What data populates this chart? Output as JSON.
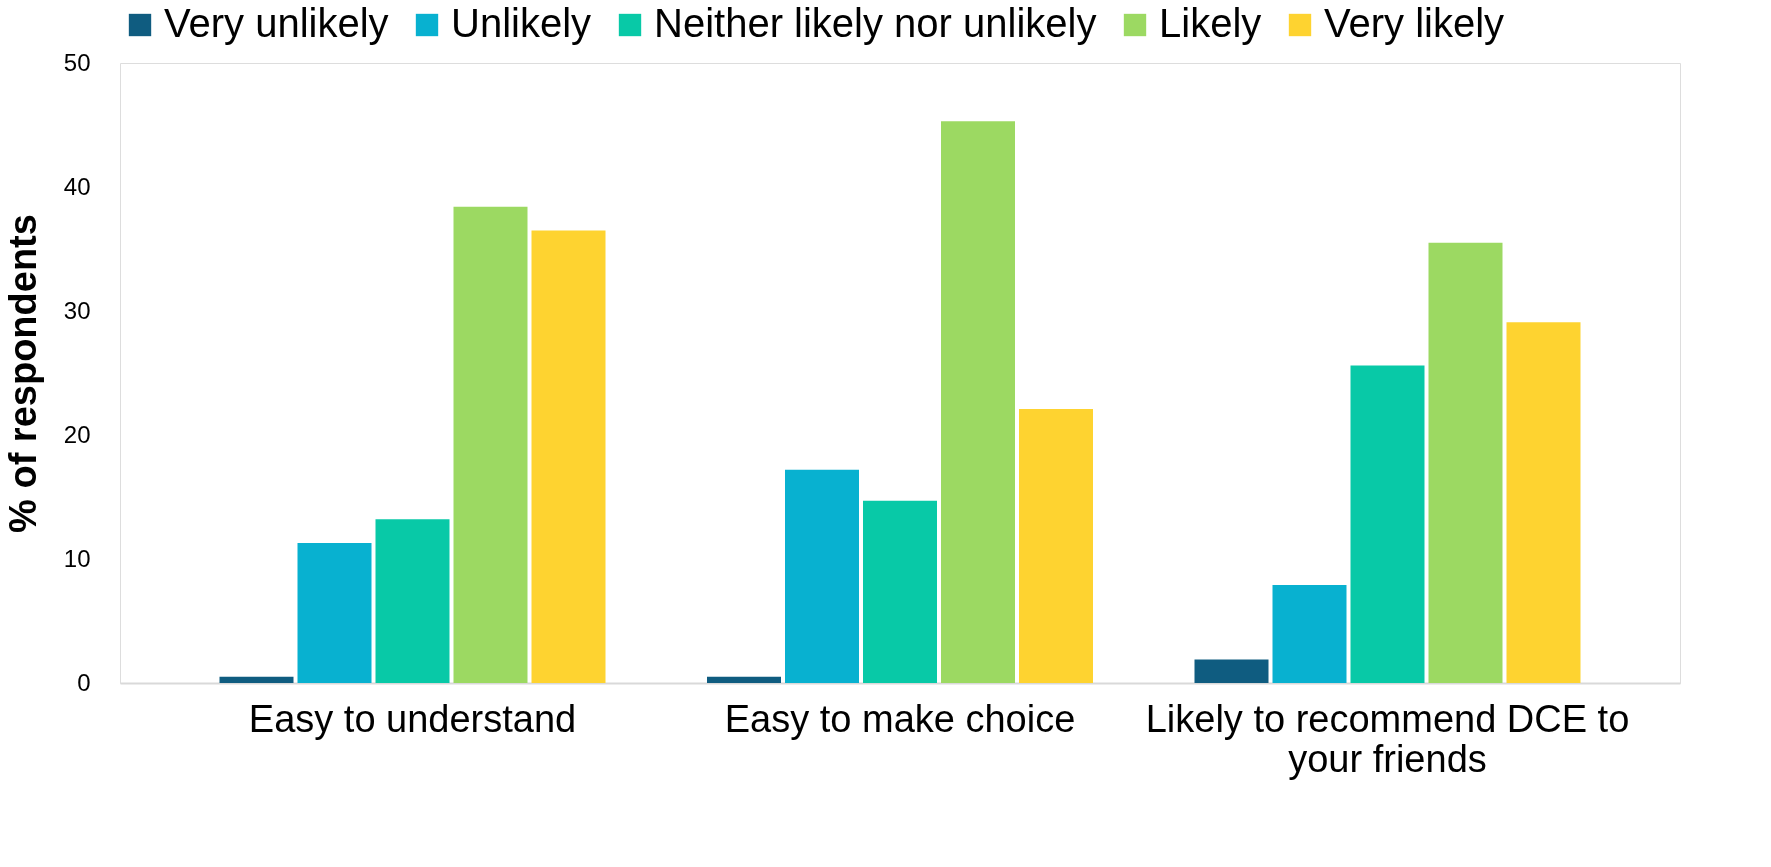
{
  "chart_data": {
    "type": "bar",
    "ylabel": "% of respondents",
    "categories": [
      "Easy to understand",
      "Easy to make choice",
      "Likely to recommend DCE to your friends"
    ],
    "series": [
      {
        "name": "Very unlikely",
        "color": "#0f5c80",
        "values": [
          0.5,
          0.5,
          1.9
        ]
      },
      {
        "name": "Unlikely",
        "color": "#08b1d0",
        "values": [
          11.3,
          17.2,
          7.9
        ]
      },
      {
        "name": "Neither likely nor unlikely",
        "color": "#08c9a7",
        "values": [
          13.2,
          14.7,
          25.6
        ]
      },
      {
        "name": "Likely",
        "color": "#9cd962",
        "values": [
          38.4,
          45.3,
          35.5
        ]
      },
      {
        "name": "Very likely",
        "color": "#fed330",
        "values": [
          36.5,
          22.1,
          29.1
        ]
      }
    ],
    "ylim": [
      0,
      50
    ],
    "yticks": [
      0,
      10,
      20,
      30,
      40,
      50
    ],
    "grid": false,
    "legend": "top"
  }
}
